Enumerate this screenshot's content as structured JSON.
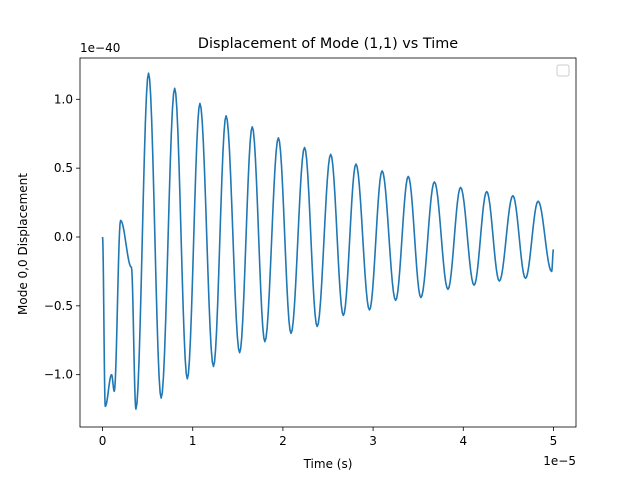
{
  "chart_data": {
    "type": "line",
    "title": "Displacement of Mode (1,1) vs Time",
    "xlabel": "Time (s)",
    "ylabel": "Mode 0,0 Displacement",
    "x_offset_label": "1e−5",
    "y_offset_label": "1e−40",
    "x_scale_factor": 1e-05,
    "y_scale_factor": 1e-40,
    "xlim": [
      -0.25,
      5.25
    ],
    "ylim": [
      -1.38,
      1.3
    ],
    "xticks": [
      0,
      1,
      2,
      3,
      4,
      5
    ],
    "xtick_labels": [
      "0",
      "1",
      "2",
      "3",
      "4",
      "5"
    ],
    "yticks": [
      -1.0,
      -0.5,
      0.0,
      0.5,
      1.0
    ],
    "ytick_labels": [
      "−1.0",
      "−0.5",
      "0.0",
      "0.5",
      "1.0"
    ],
    "grid": false,
    "legend": {
      "position": "upper-right",
      "entries": []
    },
    "series": [
      {
        "color": "#1f77b4",
        "peaks": [
          [
            0.0,
            0.0
          ],
          [
            0.03,
            -1.23
          ],
          [
            0.1,
            -1.0
          ],
          [
            0.13,
            -1.12
          ],
          [
            0.2,
            0.12
          ],
          [
            0.32,
            -0.22
          ],
          [
            0.37,
            -1.25
          ],
          [
            0.51,
            1.19
          ],
          [
            0.65,
            -1.17
          ],
          [
            0.8,
            1.08
          ],
          [
            0.94,
            -1.03
          ],
          [
            1.08,
            0.97
          ],
          [
            1.23,
            -0.94
          ],
          [
            1.37,
            0.88
          ],
          [
            1.52,
            -0.84
          ],
          [
            1.66,
            0.8
          ],
          [
            1.8,
            -0.76
          ],
          [
            1.95,
            0.72
          ],
          [
            2.09,
            -0.7
          ],
          [
            2.24,
            0.65
          ],
          [
            2.38,
            -0.65
          ],
          [
            2.53,
            0.6
          ],
          [
            2.67,
            -0.57
          ],
          [
            2.81,
            0.53
          ],
          [
            2.96,
            -0.53
          ],
          [
            3.1,
            0.48
          ],
          [
            3.25,
            -0.46
          ],
          [
            3.39,
            0.44
          ],
          [
            3.53,
            -0.44
          ],
          [
            3.68,
            0.4
          ],
          [
            3.83,
            -0.38
          ],
          [
            3.97,
            0.36
          ],
          [
            4.12,
            -0.35
          ],
          [
            4.26,
            0.33
          ],
          [
            4.4,
            -0.32
          ],
          [
            4.55,
            0.3
          ],
          [
            4.69,
            -0.3
          ],
          [
            4.83,
            0.26
          ],
          [
            4.98,
            -0.25
          ],
          [
            5.0,
            -0.09
          ]
        ]
      }
    ]
  }
}
